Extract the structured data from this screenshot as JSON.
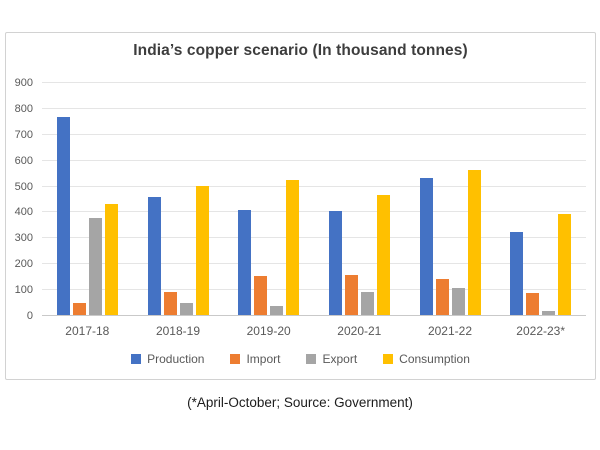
{
  "title": "India’s copper scenario (In thousand tonnes)",
  "footnote": "(*April-October; Source: Government)",
  "colors": {
    "production": "#4472C4",
    "import": "#ED7D31",
    "export": "#A5A5A5",
    "consumption": "#FFC000",
    "gridline": "#e5e5e5",
    "axis_text": "#595959",
    "title_text": "#3d3d3d",
    "panel_border": "#d2d2d2"
  },
  "chart_data": {
    "type": "bar",
    "title": "India’s copper scenario (In thousand tonnes)",
    "categories": [
      "2017-18",
      "2018-19",
      "2019-20",
      "2020-21",
      "2021-22",
      "2022-23*"
    ],
    "series": [
      {
        "name": "Production",
        "color": "#4472C4",
        "values": [
          765,
          455,
          405,
          400,
          530,
          320
        ]
      },
      {
        "name": "Import",
        "color": "#ED7D31",
        "values": [
          45,
          90,
          150,
          155,
          140,
          85
        ]
      },
      {
        "name": "Export",
        "color": "#A5A5A5",
        "values": [
          375,
          45,
          35,
          90,
          105,
          15
        ]
      },
      {
        "name": "Consumption",
        "color": "#FFC000",
        "values": [
          430,
          500,
          520,
          465,
          560,
          390
        ]
      }
    ],
    "xlabel": "",
    "ylabel": "",
    "ylim": [
      0,
      900
    ],
    "ytick_step": 100,
    "grid": true,
    "legend_position": "bottom"
  }
}
